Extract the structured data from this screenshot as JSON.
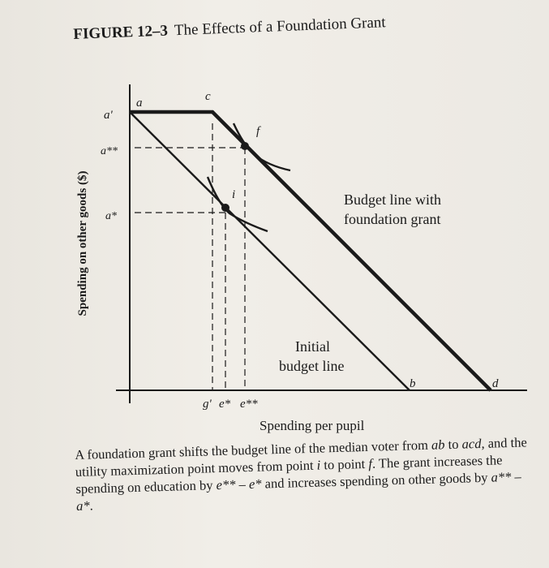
{
  "figure": {
    "number": "FIGURE 12–3",
    "title": "The Effects of a Foundation Grant"
  },
  "axes": {
    "y_label": "Spending on other goods ($)",
    "x_label": "Spending per pupil"
  },
  "points": {
    "a_prime": "a'",
    "a": "a",
    "c": "c",
    "f": "f",
    "i": "i",
    "b": "b",
    "d": "d",
    "a_star": "a*",
    "a_star_star": "a**",
    "g_prime": "g'",
    "e_star": "e*",
    "e_star_star": "e**"
  },
  "line_labels": {
    "grant_line_1": "Budget line with",
    "grant_line_2": "foundation grant",
    "initial_line_1": "Initial",
    "initial_line_2": "budget line"
  },
  "caption": {
    "p1": "A foundation grant shifts the budget line of the median voter from ",
    "ab": "ab",
    "p2": " to ",
    "acd": "acd",
    "p3": ", and the utility maximization point moves from point ",
    "i": "i",
    "p4": " to point ",
    "f": "f",
    "p5": ". The grant increases the spending on education by ",
    "e_diff": "e** – e*",
    "p6": " and increases spending on other goods by ",
    "a_diff": "a** – a*",
    "p7": "."
  }
}
